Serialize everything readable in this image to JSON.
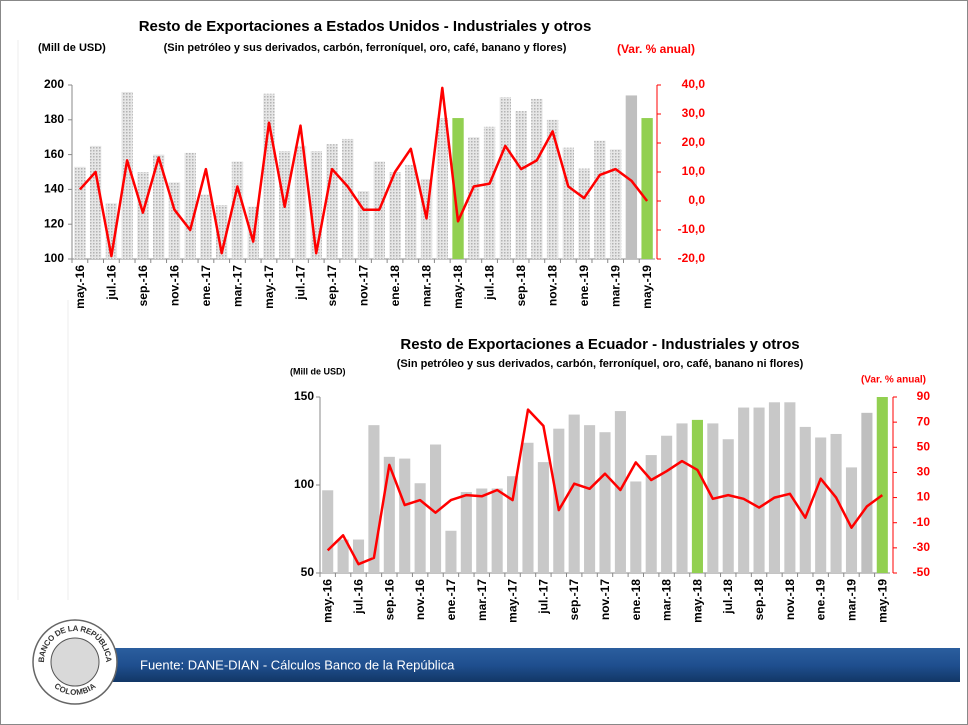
{
  "chart_data": [
    {
      "type": "bar-line",
      "title": "Resto de Exportaciones a Estados Unidos - Industriales y otros",
      "subtitle": "(Sin petróleo y sus derivados, carbón, ferroníquel, oro, café, banano y flores)",
      "ylabel": "(Mill de USD)",
      "y2label": "(Var. % anual)",
      "categories": [
        "may.-16",
        null,
        "jul.-16",
        null,
        "sep.-16",
        null,
        "nov.-16",
        null,
        "ene.-17",
        null,
        "mar.-17",
        null,
        "may.-17",
        null,
        "jul.-17",
        null,
        "sep.-17",
        null,
        "nov.-17",
        null,
        "ene.-18",
        null,
        "mar.-18",
        null,
        "may.-18",
        null,
        "jul.-18",
        null,
        "sep.-18",
        null,
        "nov.-18",
        null,
        "ene.-19",
        null,
        "mar.-19",
        null,
        "may.-19"
      ],
      "series": [
        {
          "type": "bar",
          "color": "#b3b3b3",
          "pattern": true,
          "colors": [
            "#b3b3b3",
            "#b3b3b3",
            "#b3b3b3",
            "#b3b3b3",
            "#b3b3b3",
            "#b3b3b3",
            "#b3b3b3",
            "#b3b3b3",
            "#b3b3b3",
            "#b3b3b3",
            "#b3b3b3",
            "#b3b3b3",
            "#b3b3b3",
            "#b3b3b3",
            "#b3b3b3",
            "#b3b3b3",
            "#b3b3b3",
            "#b3b3b3",
            "#b3b3b3",
            "#b3b3b3",
            "#b3b3b3",
            "#b3b3b3",
            "#b3b3b3",
            "#b3b3b3",
            "#92d050",
            "#b3b3b3",
            "#b3b3b3",
            "#b3b3b3",
            "#b3b3b3",
            "#b3b3b3",
            "#b3b3b3",
            "#b3b3b3",
            "#b3b3b3",
            "#b3b3b3",
            "#b3b3b3",
            "#bfbfbf",
            "#92d050"
          ],
          "values": [
            153,
            165,
            132,
            196,
            150,
            160,
            144,
            161,
            137,
            131,
            156,
            130,
            195,
            162,
            165,
            162,
            166,
            169,
            139,
            156,
            150,
            154,
            146,
            181,
            181,
            170,
            176,
            193,
            185,
            192,
            180,
            164,
            152,
            168,
            163,
            194,
            181
          ]
        },
        {
          "type": "line",
          "color": "#ff0000",
          "axis": "y2",
          "values": [
            4,
            10,
            -19,
            14,
            -4,
            15,
            -3,
            -10,
            11,
            -18,
            5,
            -14,
            27,
            -2,
            26,
            -18,
            11,
            5,
            -3,
            -3,
            10,
            18,
            -6,
            39,
            -7,
            5,
            6,
            19,
            11,
            14,
            24,
            5,
            1,
            9,
            11,
            7,
            0
          ]
        }
      ],
      "ylim": [
        100,
        200
      ],
      "yticks": [
        100,
        120,
        140,
        160,
        180,
        200
      ],
      "y2lim": [
        -20,
        40
      ],
      "y2ticks": [
        {
          "value": -20,
          "label": "-20,0"
        },
        {
          "value": -10,
          "label": "-10,0"
        },
        {
          "value": 0,
          "label": "0,0"
        },
        {
          "value": 10,
          "label": "10,0"
        },
        {
          "value": 20,
          "label": "20,0"
        },
        {
          "value": 30,
          "label": "30,0"
        },
        {
          "value": 40,
          "label": "40,0"
        }
      ],
      "grid": false
    },
    {
      "type": "bar-line",
      "title": "Resto de Exportaciones a Ecuador - Industriales y otros",
      "subtitle": "(Sin petróleo y sus derivados, carbón, ferroníquel, oro, café, banano ni flores)",
      "ylabel": "(Mill de USD)",
      "y2label": "(Var. % anual)",
      "categories": [
        "may.-16",
        null,
        "jul.-16",
        null,
        "sep.-16",
        null,
        "nov.-16",
        null,
        "ene.-17",
        null,
        "mar.-17",
        null,
        "may.-17",
        null,
        "jul.-17",
        null,
        "sep.-17",
        null,
        "nov.-17",
        null,
        "ene.-18",
        null,
        "mar.-18",
        null,
        "may.-18",
        null,
        "jul.-18",
        null,
        "sep.-18",
        null,
        "nov.-18",
        null,
        "ene.-19",
        null,
        "mar.-19",
        null,
        "may.-19"
      ],
      "series": [
        {
          "type": "bar",
          "color": "#c8c8c8",
          "pattern": false,
          "colors": [
            "#c8c8c8",
            "#c8c8c8",
            "#c8c8c8",
            "#c8c8c8",
            "#c8c8c8",
            "#c8c8c8",
            "#c8c8c8",
            "#c8c8c8",
            "#c8c8c8",
            "#c8c8c8",
            "#c8c8c8",
            "#c8c8c8",
            "#c8c8c8",
            "#c8c8c8",
            "#c8c8c8",
            "#c8c8c8",
            "#c8c8c8",
            "#c8c8c8",
            "#c8c8c8",
            "#c8c8c8",
            "#c8c8c8",
            "#c8c8c8",
            "#c8c8c8",
            "#c8c8c8",
            "#92d050",
            "#c8c8c8",
            "#c8c8c8",
            "#c8c8c8",
            "#c8c8c8",
            "#c8c8c8",
            "#c8c8c8",
            "#c8c8c8",
            "#c8c8c8",
            "#c8c8c8",
            "#c8c8c8",
            "#bfbfbf",
            "#92d050"
          ],
          "values": [
            97,
            69,
            69,
            134,
            116,
            115,
            101,
            123,
            74,
            96,
            98,
            98,
            105,
            124,
            113,
            132,
            140,
            134,
            130,
            142,
            102,
            117,
            128,
            135,
            137,
            135,
            126,
            144,
            144,
            147,
            147,
            133,
            127,
            129,
            110,
            141,
            150
          ]
        },
        {
          "type": "line",
          "color": "#ff0000",
          "axis": "y2",
          "values": [
            -32,
            -20,
            -43,
            -38,
            36,
            4,
            8,
            -2,
            8,
            12,
            11,
            16,
            8,
            80,
            67,
            0,
            21,
            17,
            29,
            16,
            38,
            24,
            31,
            39,
            32,
            9,
            12,
            9,
            2,
            10,
            13,
            -6,
            25,
            10,
            -14,
            3,
            12
          ]
        }
      ],
      "ylim": [
        50,
        150
      ],
      "yticks": [
        50,
        100,
        150
      ],
      "y2lim": [
        -50,
        90
      ],
      "y2ticks": [
        -50,
        -30,
        -10,
        10,
        30,
        50,
        70,
        90
      ],
      "grid": false
    }
  ],
  "footer": "Fuente: DANE-DIAN - Cálculos Banco de la República",
  "logo": {
    "top": "BANCO DE LA REPÚBLICA",
    "bottom": "COLOMBIA"
  }
}
